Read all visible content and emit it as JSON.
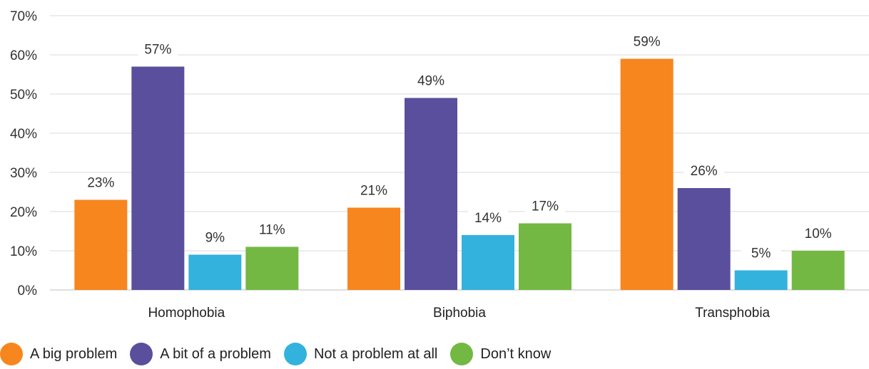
{
  "chart_data": {
    "type": "bar",
    "title": "",
    "xlabel": "",
    "ylabel": "",
    "ylim": [
      0,
      70
    ],
    "y_ticks": [
      "0%",
      "10%",
      "20%",
      "30%",
      "40%",
      "50%",
      "60%",
      "70%"
    ],
    "y_tick_values": [
      0,
      10,
      20,
      30,
      40,
      50,
      60,
      70
    ],
    "grid": true,
    "legend_position": "bottom-left",
    "categories": [
      "Homophobia",
      "Biphobia",
      "Transphobia"
    ],
    "series": [
      {
        "name": "A big problem",
        "color": "#f7861f",
        "values": [
          23,
          21,
          59
        ],
        "labels": [
          "23%",
          "21%",
          "59%"
        ]
      },
      {
        "name": "A bit of a problem",
        "color": "#5a4f9c",
        "values": [
          57,
          49,
          26
        ],
        "labels": [
          "57%",
          "49%",
          "26%"
        ]
      },
      {
        "name": "Not a problem at all",
        "color": "#33b2dd",
        "values": [
          9,
          14,
          5
        ],
        "labels": [
          "9%",
          "14%",
          "5%"
        ]
      },
      {
        "name": "Don’t know",
        "color": "#73b843",
        "values": [
          11,
          17,
          10
        ],
        "labels": [
          "11%",
          "17%",
          "10%"
        ]
      }
    ]
  }
}
